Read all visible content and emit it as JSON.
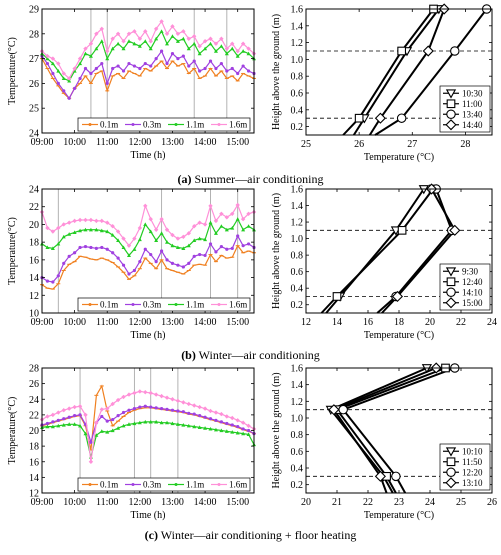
{
  "captions": [
    {
      "letter": "(a)",
      "text": " Summer—air conditioning"
    },
    {
      "letter": "(b)",
      "text": " Winter—air conditioning"
    },
    {
      "letter": "(c)",
      "text": " Winter—air conditioning + floor heating"
    }
  ],
  "colors": {
    "0.1m": "#f08020",
    "0.3m": "#a040e0",
    "1.1m": "#22cc22",
    "1.6m": "#ff90d8",
    "axis": "#000000",
    "vline": "#aaaaaa"
  },
  "chart_data": [
    {
      "id": "a-time",
      "type": "line",
      "xlabel": "Time (h)",
      "ylabel": "Temperature(°C)",
      "xlim": [
        "09:00",
        "15:30"
      ],
      "ylim": [
        24,
        29
      ],
      "xticks": [
        "09:00",
        "10:00",
        "11:00",
        "12:00",
        "13:00",
        "14:00",
        "15:00"
      ],
      "yticks": [
        24,
        25,
        26,
        27,
        28,
        29
      ],
      "vlines": [
        "10:30",
        "11:00",
        "13:40",
        "14:40"
      ],
      "legend_position": "bottom-center",
      "x": [
        "09:00",
        "09:10",
        "09:20",
        "09:30",
        "09:40",
        "09:50",
        "10:00",
        "10:10",
        "10:20",
        "10:30",
        "10:40",
        "10:50",
        "11:00",
        "11:10",
        "11:20",
        "11:30",
        "11:40",
        "11:50",
        "12:00",
        "12:10",
        "12:20",
        "12:30",
        "12:40",
        "12:50",
        "13:00",
        "13:10",
        "13:20",
        "13:30",
        "13:40",
        "13:50",
        "14:00",
        "14:10",
        "14:20",
        "14:30",
        "14:40",
        "14:50",
        "15:00",
        "15:10",
        "15:20",
        "15:30"
      ],
      "series": [
        {
          "name": "0.1m",
          "values": [
            27.0,
            26.6,
            26.2,
            25.9,
            25.6,
            25.4,
            25.8,
            26.0,
            26.3,
            26.0,
            26.4,
            26.5,
            25.7,
            26.3,
            26.4,
            26.2,
            26.5,
            26.4,
            26.3,
            26.6,
            26.5,
            26.7,
            26.9,
            26.6,
            26.9,
            26.7,
            26.8,
            26.4,
            26.6,
            26.2,
            26.3,
            26.6,
            26.3,
            26.5,
            26.2,
            26.3,
            26.1,
            26.4,
            26.3,
            26.2
          ]
        },
        {
          "name": "0.3m",
          "values": [
            27.1,
            26.8,
            26.4,
            26.0,
            25.7,
            25.4,
            25.8,
            26.2,
            26.6,
            26.4,
            26.6,
            26.8,
            26.0,
            26.6,
            26.7,
            26.5,
            26.8,
            26.7,
            26.6,
            26.8,
            26.7,
            27.0,
            27.3,
            26.8,
            27.2,
            27.0,
            27.1,
            26.7,
            26.9,
            26.5,
            26.6,
            26.9,
            26.6,
            26.8,
            26.5,
            26.6,
            26.4,
            26.7,
            26.5,
            26.4
          ]
        },
        {
          "name": "1.1m",
          "values": [
            27.2,
            27.0,
            26.8,
            26.5,
            26.2,
            26.1,
            26.5,
            26.8,
            27.2,
            27.1,
            27.4,
            27.7,
            27.0,
            27.4,
            27.6,
            27.4,
            27.7,
            27.6,
            27.5,
            27.7,
            27.4,
            27.8,
            28.1,
            27.6,
            27.9,
            27.7,
            27.8,
            27.4,
            27.6,
            27.2,
            27.4,
            27.6,
            27.3,
            27.5,
            27.2,
            27.4,
            27.1,
            27.3,
            27.2,
            27.0
          ]
        },
        {
          "name": "1.6m",
          "values": [
            27.3,
            27.1,
            27.0,
            26.8,
            26.4,
            26.2,
            26.6,
            27.0,
            27.4,
            27.6,
            28.0,
            28.2,
            27.3,
            27.8,
            28.0,
            27.7,
            28.0,
            28.1,
            27.8,
            28.1,
            27.7,
            28.2,
            28.5,
            28.0,
            28.3,
            28.0,
            28.1,
            27.8,
            27.9,
            27.5,
            27.7,
            27.8,
            27.6,
            27.8,
            27.4,
            27.6,
            27.3,
            27.6,
            27.4,
            27.2
          ]
        }
      ]
    },
    {
      "id": "a-profile",
      "type": "line",
      "xlabel": "Temperature (°C)",
      "ylabel": "Height above the ground (m)",
      "xlim": [
        25,
        28.5
      ],
      "ylim": [
        0.1,
        1.6
      ],
      "xticks": [
        25,
        26,
        27,
        28
      ],
      "yticks": [
        0.2,
        0.4,
        0.6,
        0.8,
        1.0,
        1.2,
        1.4,
        1.6
      ],
      "hlines": [
        1.1,
        0.3
      ],
      "heights": [
        0.1,
        0.3,
        1.1,
        1.6
      ],
      "legend_position": "bottom-right",
      "series": [
        {
          "name": "10:30",
          "marker": "triangle",
          "values": [
            25.9,
            26.1,
            26.9,
            27.5
          ]
        },
        {
          "name": "11:00",
          "marker": "square",
          "values": [
            25.7,
            26.0,
            26.8,
            27.4
          ]
        },
        {
          "name": "13:40",
          "marker": "circle",
          "values": [
            26.3,
            26.8,
            27.8,
            28.4
          ]
        },
        {
          "name": "14:40",
          "marker": "diamond",
          "values": [
            26.2,
            26.4,
            27.3,
            27.6
          ]
        }
      ]
    },
    {
      "id": "b-time",
      "type": "line",
      "xlabel": "Time (h)",
      "ylabel": "Temperature(°C)",
      "xlim": [
        "09:00",
        "15:30"
      ],
      "ylim": [
        10,
        24
      ],
      "xticks": [
        "09:00",
        "10:00",
        "11:00",
        "12:00",
        "13:00",
        "14:00",
        "15:00"
      ],
      "yticks": [
        10,
        12,
        14,
        16,
        18,
        20,
        22,
        24
      ],
      "vlines": [
        "09:30",
        "12:40",
        "14:10",
        "15:00"
      ],
      "legend_position": "bottom-center",
      "x": [
        "09:00",
        "09:10",
        "09:20",
        "09:30",
        "09:40",
        "09:50",
        "10:00",
        "10:10",
        "10:20",
        "10:30",
        "10:40",
        "10:50",
        "11:00",
        "11:10",
        "11:20",
        "11:30",
        "11:40",
        "11:50",
        "12:00",
        "12:10",
        "12:20",
        "12:30",
        "12:40",
        "12:50",
        "13:00",
        "13:10",
        "13:20",
        "13:30",
        "13:40",
        "13:50",
        "14:00",
        "14:10",
        "14:20",
        "14:30",
        "14:40",
        "14:50",
        "15:00",
        "15:10",
        "15:20",
        "15:30"
      ],
      "series": [
        {
          "name": "0.1m",
          "values": [
            13.2,
            12.8,
            12.7,
            13.3,
            14.8,
            15.5,
            15.8,
            16.4,
            16.3,
            16.1,
            16.0,
            16.2,
            16.0,
            15.7,
            15.2,
            14.6,
            13.8,
            14.2,
            15.0,
            16.2,
            15.6,
            15.0,
            16.0,
            15.0,
            14.8,
            14.6,
            14.4,
            14.8,
            15.4,
            15.5,
            15.4,
            16.6,
            15.8,
            16.5,
            16.2,
            16.3,
            17.6,
            16.8,
            17.0,
            16.8
          ]
        },
        {
          "name": "0.3m",
          "values": [
            14.0,
            13.6,
            13.5,
            14.2,
            15.6,
            16.4,
            16.8,
            17.4,
            17.5,
            17.4,
            17.3,
            17.4,
            17.2,
            16.8,
            16.2,
            15.4,
            14.4,
            14.8,
            15.8,
            17.2,
            16.6,
            15.8,
            17.0,
            16.0,
            15.6,
            15.4,
            15.2,
            15.6,
            16.4,
            16.6,
            16.5,
            17.8,
            16.9,
            17.5,
            17.2,
            17.3,
            18.7,
            17.6,
            17.8,
            17.4
          ]
        },
        {
          "name": "1.1m",
          "values": [
            17.8,
            17.4,
            17.3,
            17.8,
            18.6,
            18.9,
            19.1,
            19.3,
            19.4,
            19.4,
            19.4,
            19.3,
            19.2,
            18.8,
            18.2,
            17.4,
            16.5,
            17.2,
            18.3,
            20.0,
            19.2,
            18.2,
            19.0,
            18.0,
            17.6,
            17.4,
            17.3,
            17.6,
            18.2,
            18.4,
            18.3,
            20.2,
            19.0,
            19.8,
            19.4,
            19.6,
            20.6,
            19.4,
            19.8,
            19.4
          ]
        },
        {
          "name": "1.6m",
          "values": [
            21.4,
            19.6,
            19.2,
            19.6,
            20.0,
            20.2,
            20.4,
            20.5,
            20.5,
            20.5,
            20.4,
            20.4,
            20.2,
            19.8,
            19.2,
            18.4,
            17.6,
            18.4,
            19.6,
            22.1,
            20.6,
            19.4,
            20.6,
            19.4,
            18.8,
            18.4,
            18.6,
            19.0,
            19.8,
            20.2,
            20.0,
            22.1,
            20.4,
            21.2,
            20.8,
            21.2,
            22.2,
            20.6,
            21.2,
            21.4
          ]
        }
      ]
    },
    {
      "id": "b-profile",
      "type": "line",
      "xlabel": "Temperature (°C)",
      "ylabel": "Height above the ground (m)",
      "xlim": [
        12,
        24
      ],
      "ylim": [
        0.1,
        1.6
      ],
      "xticks": [
        12,
        14,
        16,
        18,
        20,
        22,
        24
      ],
      "yticks": [
        0.2,
        0.4,
        0.6,
        0.8,
        1.0,
        1.2,
        1.4,
        1.6
      ],
      "hlines": [
        1.1,
        0.3
      ],
      "heights": [
        0.1,
        0.3,
        1.1,
        1.6
      ],
      "legend_position": "bottom-right",
      "series": [
        {
          "name": "9:30",
          "marker": "triangle",
          "values": [
            13.3,
            14.2,
            17.8,
            19.6
          ]
        },
        {
          "name": "12:40",
          "marker": "square",
          "values": [
            13.0,
            14.0,
            18.2,
            20.2
          ]
        },
        {
          "name": "14:10",
          "marker": "circle",
          "values": [
            16.6,
            17.8,
            21.4,
            20.4
          ]
        },
        {
          "name": "15:00",
          "marker": "diamond",
          "values": [
            16.9,
            17.9,
            21.6,
            20.1
          ]
        }
      ]
    },
    {
      "id": "c-time",
      "type": "line",
      "xlabel": "Time (h)",
      "ylabel": "Temperature(°C)",
      "xlim": [
        "09:00",
        "15:30"
      ],
      "ylim": [
        12,
        28
      ],
      "xticks": [
        "09:00",
        "10:00",
        "11:00",
        "12:00",
        "13:00",
        "14:00",
        "15:00"
      ],
      "yticks": [
        12,
        14,
        16,
        18,
        20,
        22,
        24,
        26,
        28
      ],
      "vlines": [
        "10:10",
        "11:50",
        "12:20",
        "13:10"
      ],
      "legend_position": "bottom-center",
      "x": [
        "09:00",
        "09:10",
        "09:20",
        "09:30",
        "09:40",
        "09:50",
        "10:00",
        "10:10",
        "10:20",
        "10:30",
        "10:40",
        "10:50",
        "11:00",
        "11:10",
        "11:20",
        "11:30",
        "11:40",
        "11:50",
        "12:00",
        "12:10",
        "12:20",
        "12:30",
        "12:40",
        "12:50",
        "13:00",
        "13:10",
        "13:20",
        "13:30",
        "13:40",
        "13:50",
        "14:00",
        "14:10",
        "14:20",
        "14:30",
        "14:40",
        "14:50",
        "15:00",
        "15:10",
        "15:20",
        "15:30"
      ],
      "series": [
        {
          "name": "0.1m",
          "values": [
            20.6,
            20.8,
            21.0,
            21.2,
            21.4,
            21.6,
            21.8,
            21.9,
            20.6,
            17.5,
            24.5,
            25.7,
            22.5,
            20.6,
            21.2,
            21.8,
            22.3,
            22.6,
            22.8,
            22.9,
            22.9,
            22.8,
            22.7,
            22.6,
            22.5,
            22.4,
            22.3,
            22.1,
            22.0,
            21.8,
            21.6,
            21.4,
            21.2,
            21.0,
            20.8,
            20.6,
            20.4,
            20.1,
            19.9,
            19.6
          ]
        },
        {
          "name": "0.3m",
          "values": [
            20.7,
            20.9,
            21.1,
            21.3,
            21.5,
            21.7,
            21.9,
            22.0,
            20.8,
            18.5,
            21.0,
            21.8,
            21.2,
            21.4,
            21.9,
            22.3,
            22.6,
            22.8,
            23.0,
            23.1,
            23.0,
            22.9,
            22.8,
            22.7,
            22.6,
            22.5,
            22.4,
            22.2,
            22.1,
            21.9,
            21.7,
            21.5,
            21.3,
            21.1,
            20.9,
            20.7,
            20.5,
            20.2,
            20.0,
            19.6
          ]
        },
        {
          "name": "1.1m",
          "values": [
            20.4,
            20.5,
            20.5,
            20.6,
            20.7,
            20.8,
            20.8,
            20.6,
            19.6,
            16.6,
            19.4,
            19.9,
            19.8,
            20.0,
            20.3,
            20.6,
            20.8,
            20.9,
            21.0,
            21.1,
            21.1,
            21.1,
            21.0,
            21.0,
            20.9,
            20.8,
            20.7,
            20.6,
            20.5,
            20.4,
            20.3,
            20.2,
            20.1,
            20.0,
            19.9,
            19.8,
            19.7,
            19.6,
            19.5,
            18.2
          ]
        },
        {
          "name": "1.6m",
          "values": [
            21.4,
            21.8,
            22.0,
            22.3,
            22.6,
            22.8,
            23.0,
            23.1,
            22.0,
            16.0,
            21.0,
            22.7,
            22.8,
            23.4,
            23.9,
            24.3,
            24.6,
            24.8,
            25.0,
            24.9,
            24.8,
            24.6,
            24.4,
            24.2,
            24.0,
            23.8,
            23.6,
            23.4,
            23.2,
            23.0,
            22.8,
            22.5,
            22.3,
            22.1,
            21.8,
            21.6,
            21.3,
            21.0,
            20.6,
            20.2
          ]
        }
      ]
    },
    {
      "id": "c-profile",
      "type": "line",
      "xlabel": "Temperature (°C)",
      "ylabel": "Height above the ground (m)",
      "xlim": [
        20,
        26
      ],
      "ylim": [
        0.1,
        1.6
      ],
      "xticks": [
        20,
        21,
        22,
        23,
        24,
        25,
        26
      ],
      "yticks": [
        0.2,
        0.4,
        0.6,
        0.8,
        1.0,
        1.2,
        1.4,
        1.6
      ],
      "hlines": [
        1.1,
        0.3
      ],
      "heights": [
        0.1,
        0.3,
        1.1,
        1.6
      ],
      "legend_position": "bottom-right",
      "series": [
        {
          "name": "10:10",
          "marker": "triangle",
          "values": [
            22.8,
            22.5,
            20.8,
            23.9
          ]
        },
        {
          "name": "11:50",
          "marker": "square",
          "values": [
            22.9,
            22.6,
            21.0,
            24.5
          ]
        },
        {
          "name": "12:20",
          "marker": "circle",
          "values": [
            23.2,
            22.9,
            21.2,
            24.8
          ]
        },
        {
          "name": "13:10",
          "marker": "diamond",
          "values": [
            22.6,
            22.4,
            20.9,
            24.2
          ]
        }
      ]
    }
  ]
}
